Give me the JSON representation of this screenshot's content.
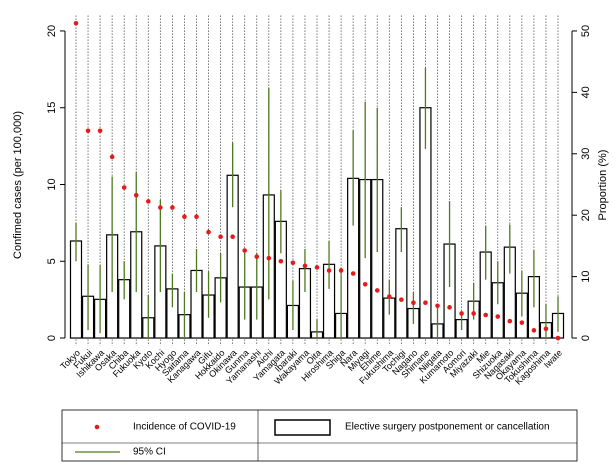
{
  "chart_data": {
    "type": "bar",
    "y_label": "Confimed cases (per 100,000)",
    "y2_label": "Proportion (%)",
    "categories": [
      "Tokyo",
      "Fukui",
      "Ishikawa",
      "Osaka",
      "Chiba",
      "Fukuoka",
      "Kyoto",
      "Kochi",
      "Hyogo",
      "Saitama",
      "Kanagawa",
      "Gifu",
      "Hokkaido",
      "Okinawa",
      "Gunma",
      "Yamanashi",
      "Aichi",
      "Yamagata",
      "Ibaraki",
      "Wakayama",
      "Oita",
      "Hiroshima",
      "Shiga",
      "Nara",
      "Miyagi",
      "Ehime",
      "Fukushima",
      "Tochigi",
      "Nagano",
      "Shimane",
      "Niigata",
      "Kumamoto",
      "Aomori",
      "Miyazaki",
      "Mie",
      "Shizuoka",
      "Nagasaki",
      "Okayama",
      "Tokushima",
      "Kagoshima",
      "Iwate"
    ],
    "ylim": [
      -0.5,
      21
    ],
    "yticks": [
      0,
      5,
      10,
      15,
      20
    ],
    "y2lim": [
      -1.25,
      52.5
    ],
    "y2ticks": [
      0,
      10,
      20,
      30,
      40,
      50
    ],
    "grid": true,
    "series": [
      {
        "name": "Elective surgery postponement or cancellation",
        "type": "bar",
        "axis": "y2",
        "color": "#000000",
        "values": [
          15.8,
          6.8,
          6.3,
          16.8,
          9.5,
          17.3,
          3.3,
          15,
          8,
          3.8,
          11,
          7,
          9.8,
          26.5,
          8.3,
          8.3,
          23.3,
          19,
          5.3,
          11.3,
          1,
          12,
          4,
          26,
          25.8,
          25.8,
          6.5,
          17.8,
          4.8,
          37.5,
          2.3,
          15.3,
          3,
          6,
          14,
          9,
          14.8,
          7.3,
          10,
          2.5,
          4
        ],
        "ci_name": "95% CI",
        "ci_color": "#4f7a22",
        "ci_low": [
          12.5,
          1.3,
          0.8,
          7.5,
          6.3,
          7.5,
          0,
          7.5,
          5,
          0,
          7.5,
          3.3,
          5.8,
          21.3,
          3,
          3,
          6.3,
          13.8,
          1.3,
          7.5,
          0,
          8,
          0,
          18.3,
          13,
          14,
          3.8,
          14,
          2.3,
          30.8,
          0,
          8.3,
          1.3,
          3,
          9.5,
          5.5,
          10.5,
          3.5,
          5,
          0,
          1
        ],
        "ci_high": [
          18.8,
          12,
          11.8,
          26.3,
          12.5,
          27,
          7,
          22.5,
          10.5,
          7.5,
          14.5,
          10.8,
          13.8,
          31.8,
          13.8,
          13.8,
          40.8,
          24,
          9.3,
          14.5,
          3,
          15.8,
          11.5,
          33.8,
          38.5,
          37.5,
          9.5,
          21.3,
          7.5,
          44,
          5.5,
          22.3,
          4.3,
          9,
          18.3,
          12.5,
          18.5,
          11,
          14.3,
          5.5,
          6.8
        ]
      },
      {
        "name": "Incidence of COVID-19",
        "type": "scatter",
        "axis": "y",
        "color": "#e41a1c",
        "values": [
          20.5,
          13.5,
          13.5,
          11.8,
          9.8,
          9.3,
          8.9,
          8.5,
          8.5,
          7.9,
          7.9,
          6.9,
          6.6,
          6.6,
          5.7,
          5.3,
          5.2,
          5.0,
          4.9,
          4.7,
          4.6,
          4.4,
          4.4,
          4.2,
          3.5,
          3.1,
          2.7,
          2.5,
          2.3,
          2.3,
          2.1,
          2.0,
          1.6,
          1.6,
          1.5,
          1.4,
          1.1,
          1.0,
          0.5,
          0.6,
          0
        ]
      }
    ]
  }
}
